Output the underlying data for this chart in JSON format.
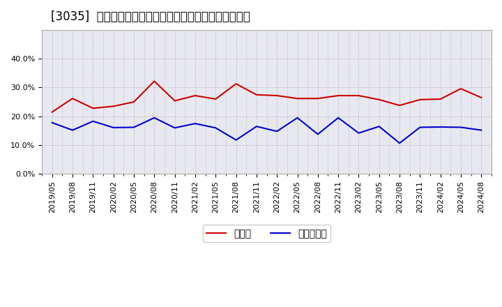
{
  "title": "[3035]  現預金、有利子負債の総資産に対する比率の推移",
  "x_labels": [
    "2019/05",
    "2019/08",
    "2019/11",
    "2020/02",
    "2020/05",
    "2020/08",
    "2020/11",
    "2021/02",
    "2021/05",
    "2021/08",
    "2021/11",
    "2022/02",
    "2022/05",
    "2022/08",
    "2022/11",
    "2023/02",
    "2023/05",
    "2023/08",
    "2023/11",
    "2024/02",
    "2024/05",
    "2024/08"
  ],
  "cash_ratio": [
    0.215,
    0.262,
    0.228,
    0.235,
    0.25,
    0.322,
    0.254,
    0.272,
    0.26,
    0.313,
    0.275,
    0.272,
    0.262,
    0.262,
    0.272,
    0.272,
    0.258,
    0.238,
    0.258,
    0.26,
    0.296,
    0.265
  ],
  "debt_ratio": [
    0.178,
    0.152,
    0.183,
    0.161,
    0.162,
    0.195,
    0.16,
    0.175,
    0.16,
    0.118,
    0.165,
    0.148,
    0.195,
    0.138,
    0.195,
    0.142,
    0.165,
    0.107,
    0.162,
    0.163,
    0.162,
    0.152
  ],
  "cash_color": "#cc0000",
  "debt_color": "#0000cc",
  "background_color": "#ffffff",
  "plot_background": "#e8e8f0",
  "grid_color": "#aaaaaa",
  "ylim": [
    0.0,
    0.5
  ],
  "yticks": [
    0.0,
    0.1,
    0.2,
    0.3,
    0.4
  ],
  "legend_cash": "現預金",
  "legend_debt": "有利子負債",
  "title_fontsize": 12,
  "axis_fontsize": 8,
  "legend_fontsize": 10
}
